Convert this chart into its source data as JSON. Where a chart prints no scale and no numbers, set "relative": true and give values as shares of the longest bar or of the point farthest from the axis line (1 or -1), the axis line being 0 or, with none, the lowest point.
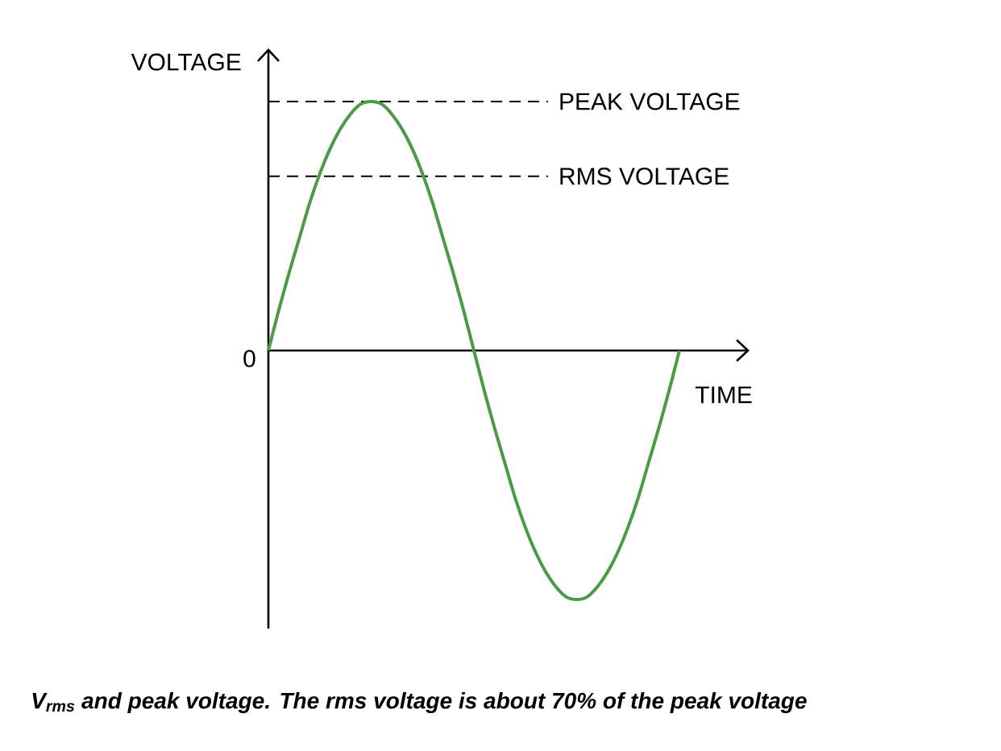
{
  "chart_data": {
    "type": "line",
    "relative": true,
    "xlabel": "TIME",
    "ylabel": "VOLTAGE",
    "categories": [
      null,
      null,
      null,
      null,
      null,
      null,
      null,
      null,
      null,
      null,
      null,
      null,
      null,
      null,
      null,
      null,
      null,
      null,
      null,
      null,
      null,
      null,
      null,
      null,
      null,
      null,
      null,
      null,
      null,
      null,
      null,
      null,
      null,
      null,
      null,
      null,
      null,
      null,
      null,
      null,
      null
    ],
    "series": [
      {
        "color": "#4a9a46",
        "values": [
          0,
          0.16,
          0.31,
          0.45,
          0.59,
          0.71,
          0.81,
          0.89,
          0.95,
          0.99,
          1,
          0.99,
          0.95,
          0.89,
          0.81,
          0.71,
          0.59,
          0.45,
          0.31,
          0.16,
          0,
          -0.16,
          -0.31,
          -0.45,
          -0.59,
          -0.71,
          -0.81,
          -0.89,
          -0.95,
          -0.99,
          -1,
          -0.99,
          -0.95,
          -0.89,
          -0.81,
          -0.71,
          -0.59,
          -0.45,
          -0.31,
          -0.16,
          0
        ]
      }
    ],
    "ref_lines": [
      {
        "axis": "y",
        "value": 1,
        "label": "PEAK  VOLTAGE",
        "color": "#000000",
        "line_style": "dashed"
      },
      {
        "axis": "y",
        "value": 0.7,
        "label": "RMS  VOLTAGE",
        "color": "#000000",
        "line_style": "dashed"
      }
    ],
    "annotations": [
      "0",
      "V$_{rms}$ and peak voltage. The rms voltage is about 70% of the peak voltage"
    ]
  }
}
